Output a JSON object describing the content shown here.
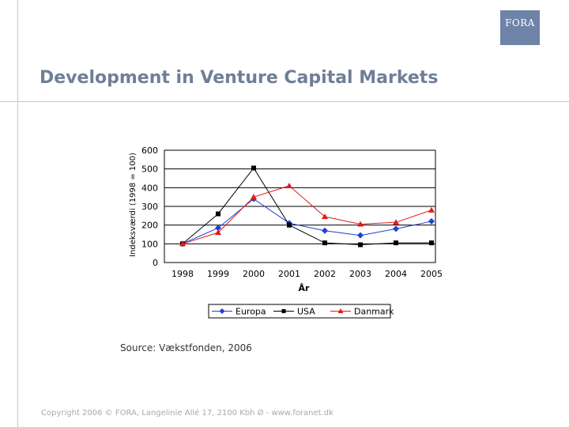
{
  "logo": {
    "text": "FORA",
    "color": "#6f83a8"
  },
  "title": "Development in Venture Capital Markets",
  "source": "Source: Vækstfonden, 2006",
  "footer": "Copyright 2006 © FORA, Langelinie Allé 17, 2100 Kbh Ø - www.foranet.dk",
  "chart_data": {
    "type": "line",
    "title": "",
    "xlabel": "År",
    "ylabel": "Indeksværdi (1998 = 100)",
    "ylim": [
      0,
      600
    ],
    "yticks": [
      0,
      100,
      200,
      300,
      400,
      500,
      600
    ],
    "categories": [
      "1998",
      "1999",
      "2000",
      "2001",
      "2002",
      "2003",
      "2004",
      "2005"
    ],
    "grid": true,
    "legend_position": "bottom",
    "series": [
      {
        "name": "Europa",
        "color": "#1f3fcf",
        "marker": "diamond",
        "values": [
          100,
          185,
          340,
          210,
          170,
          145,
          180,
          220
        ]
      },
      {
        "name": "USA",
        "color": "#000000",
        "marker": "square",
        "values": [
          100,
          260,
          505,
          200,
          105,
          95,
          105,
          105
        ]
      },
      {
        "name": "Danmark",
        "color": "#e01a1a",
        "marker": "triangle",
        "values": [
          100,
          160,
          350,
          410,
          245,
          205,
          215,
          280
        ]
      }
    ]
  }
}
